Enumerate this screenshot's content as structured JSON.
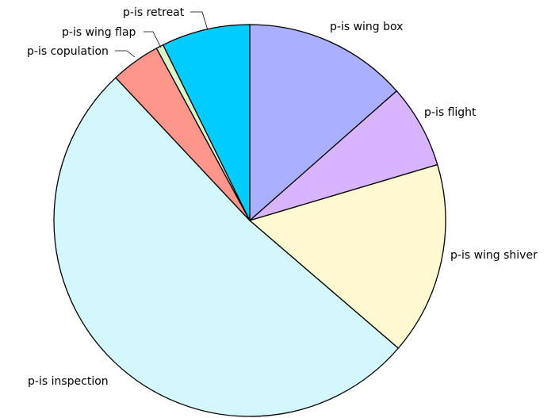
{
  "chart_data": {
    "type": "pie",
    "title": "",
    "start": "12 o'clock",
    "direction": "clockwise",
    "slices": [
      {
        "label": "p-is wing box",
        "value": 13.5,
        "color": "#aab0ff"
      },
      {
        "label": "p-is flight",
        "value": 6.9,
        "color": "#d8b4ff"
      },
      {
        "label": "p-is wing shiver",
        "value": 15.9,
        "color": "#fff8d0"
      },
      {
        "label": "p-is inspection",
        "value": 51.7,
        "color": "#d4f6fd"
      },
      {
        "label": "p-is copulation",
        "value": 4.1,
        "color": "#ff968b"
      },
      {
        "label": "p-is wing flap",
        "value": 0.6,
        "color": "#d9f5c8"
      },
      {
        "label": "p-is retreat",
        "value": 7.3,
        "color": "#00ccff"
      }
    ]
  }
}
